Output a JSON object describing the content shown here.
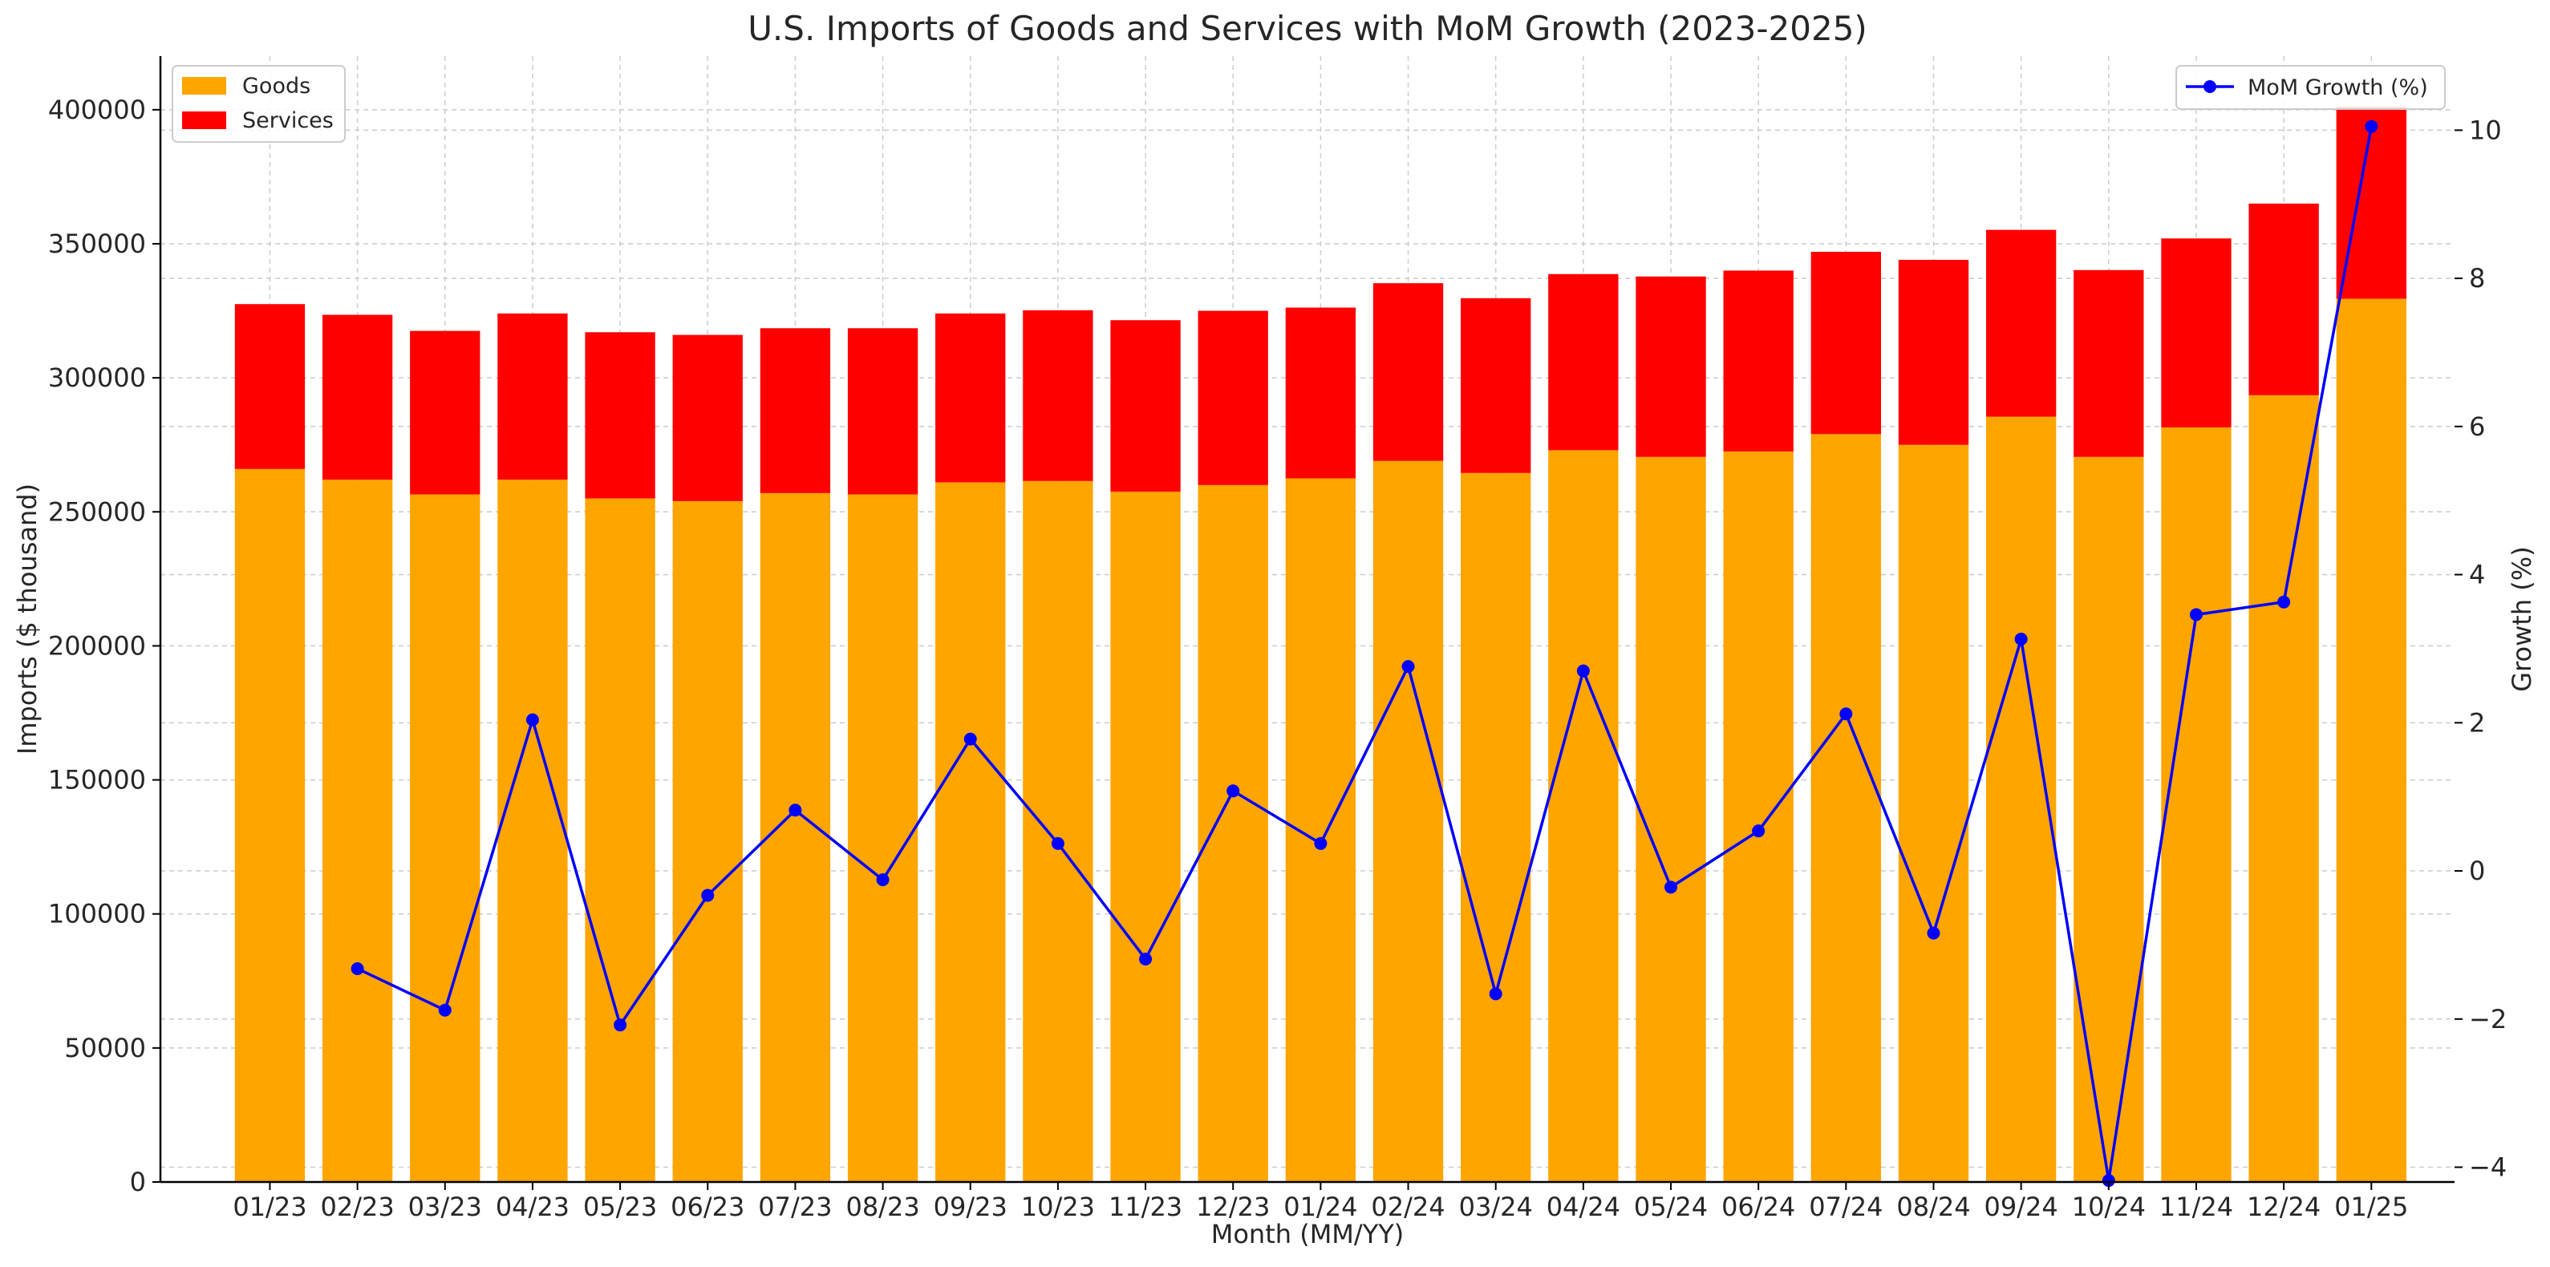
{
  "chart_data": {
    "type": "bar",
    "stacked": true,
    "title": "U.S. Imports of Goods and Services with MoM Growth (2023-2025)",
    "xlabel": "Month (MM/YY)",
    "ylabel": "Imports ($ thousand)",
    "y2label": "Growth (%)",
    "ylim": [
      0,
      420000
    ],
    "y2lim": [
      -4.2,
      11.0
    ],
    "yticks": [
      0,
      50000,
      100000,
      150000,
      200000,
      250000,
      300000,
      350000,
      400000
    ],
    "y2ticks": [
      -4,
      -2,
      0,
      2,
      4,
      6,
      8,
      10
    ],
    "grid": true,
    "categories": [
      "01/23",
      "02/23",
      "03/23",
      "04/23",
      "05/23",
      "06/23",
      "07/23",
      "08/23",
      "09/23",
      "10/23",
      "11/23",
      "12/23",
      "01/24",
      "02/24",
      "03/24",
      "04/24",
      "05/24",
      "06/24",
      "07/24",
      "08/24",
      "09/24",
      "10/24",
      "11/24",
      "12/24",
      "01/25"
    ],
    "series": [
      {
        "name": "Goods",
        "kind": "bar",
        "color": "#FFA500",
        "values": [
          266000,
          262000,
          256500,
          262000,
          255000,
          254000,
          257000,
          256500,
          261000,
          261500,
          257500,
          260000,
          262500,
          269000,
          264500,
          273000,
          270500,
          272500,
          279000,
          275000,
          285500,
          270500,
          281500,
          293500,
          329500
        ]
      },
      {
        "name": "Services",
        "kind": "bar",
        "color": "#FF0000",
        "values": [
          61500,
          61500,
          61000,
          62000,
          62000,
          62000,
          61500,
          62000,
          63000,
          63700,
          64000,
          65000,
          63700,
          66300,
          65200,
          65700,
          67300,
          67500,
          68000,
          69000,
          69700,
          69700,
          70500,
          71500,
          71500
        ]
      },
      {
        "name": "MoM Growth (%)",
        "kind": "line",
        "axis": "right",
        "color": "#0000FF",
        "values": [
          null,
          -1.32,
          -1.88,
          2.04,
          -2.08,
          -0.33,
          0.82,
          -0.12,
          1.78,
          0.37,
          -1.19,
          1.08,
          0.37,
          2.76,
          -1.66,
          2.7,
          -0.22,
          0.54,
          2.12,
          -0.84,
          3.13,
          -4.18,
          3.46,
          3.63,
          10.05
        ]
      }
    ],
    "legend": {
      "bars": "top-left",
      "line": "top-right"
    }
  }
}
